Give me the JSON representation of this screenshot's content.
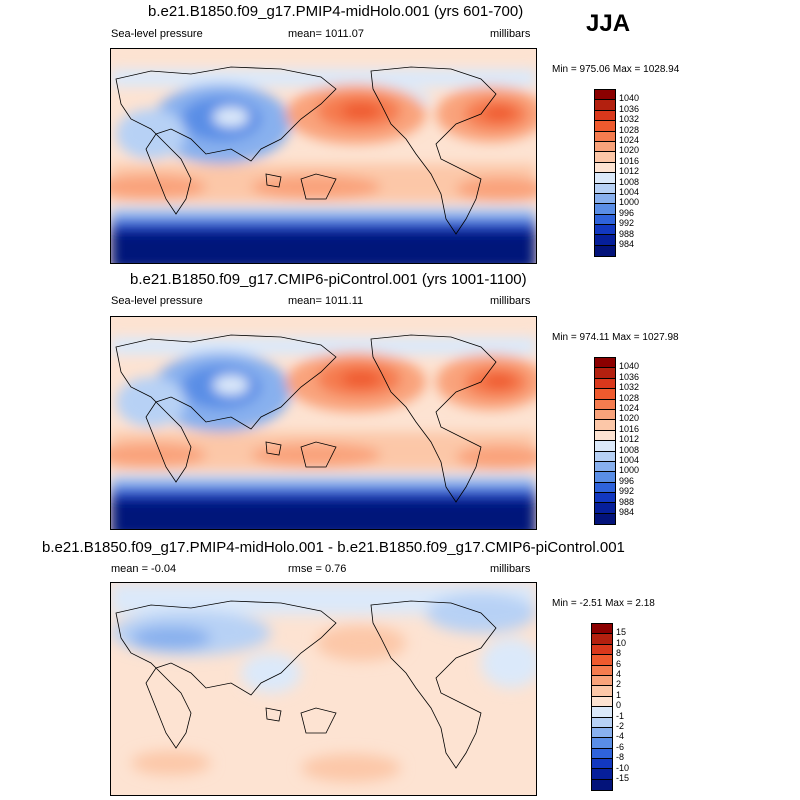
{
  "season": "JJA",
  "panels": [
    {
      "title": "b.e21.B1850.f09_g17.PMIP4-midHolo.001 (yrs 601-700)",
      "left": "Sea-level pressure",
      "center": "mean= 1011.07",
      "right": "millibars",
      "minmax": "Min = 975.06 Max = 1028.94",
      "ticks": [
        "1040",
        "1036",
        "1032",
        "1028",
        "1024",
        "1020",
        "1016",
        "1012",
        "1008",
        "1004",
        "1000",
        "996",
        "992",
        "988",
        "984"
      ],
      "colors": [
        "#8b0000",
        "#b3200f",
        "#d9381c",
        "#ef5a2e",
        "#f57c4f",
        "#f9a37b",
        "#fcc7a8",
        "#fde3d2",
        "#dbe9fa",
        "#b7d1f5",
        "#88b0ee",
        "#5a8ee6",
        "#2f63db",
        "#1238c0",
        "#061f9a",
        "#03137a"
      ]
    },
    {
      "title": "b.e21.B1850.f09_g17.CMIP6-piControl.001 (yrs 1001-1100)",
      "left": "Sea-level pressure",
      "center": "mean= 1011.11",
      "right": "millibars",
      "minmax": "Min = 974.11 Max = 1027.98",
      "ticks": [
        "1040",
        "1036",
        "1032",
        "1028",
        "1024",
        "1020",
        "1016",
        "1012",
        "1008",
        "1004",
        "1000",
        "996",
        "992",
        "988",
        "984"
      ],
      "colors": [
        "#8b0000",
        "#b3200f",
        "#d9381c",
        "#ef5a2e",
        "#f57c4f",
        "#f9a37b",
        "#fcc7a8",
        "#fde3d2",
        "#dbe9fa",
        "#b7d1f5",
        "#88b0ee",
        "#5a8ee6",
        "#2f63db",
        "#1238c0",
        "#061f9a",
        "#03137a"
      ]
    },
    {
      "title": "b.e21.B1850.f09_g17.PMIP4-midHolo.001 - b.e21.B1850.f09_g17.CMIP6-piControl.001",
      "left": "mean =  -0.04",
      "center": "rmse =   0.76",
      "right": "millibars",
      "minmax": "Min =  -2.51 Max =   2.18",
      "ticks": [
        "15",
        "10",
        "8",
        "6",
        "4",
        "2",
        "1",
        "0",
        "-1",
        "-2",
        "-4",
        "-6",
        "-8",
        "-10",
        "-15"
      ],
      "colors": [
        "#8b0000",
        "#b3200f",
        "#d9381c",
        "#ef5a2e",
        "#f57c4f",
        "#f9a37b",
        "#fcc7a8",
        "#fde3d2",
        "#dbe9fa",
        "#b7d1f5",
        "#88b0ee",
        "#5a8ee6",
        "#2f63db",
        "#1238c0",
        "#061f9a",
        "#03137a"
      ]
    }
  ]
}
